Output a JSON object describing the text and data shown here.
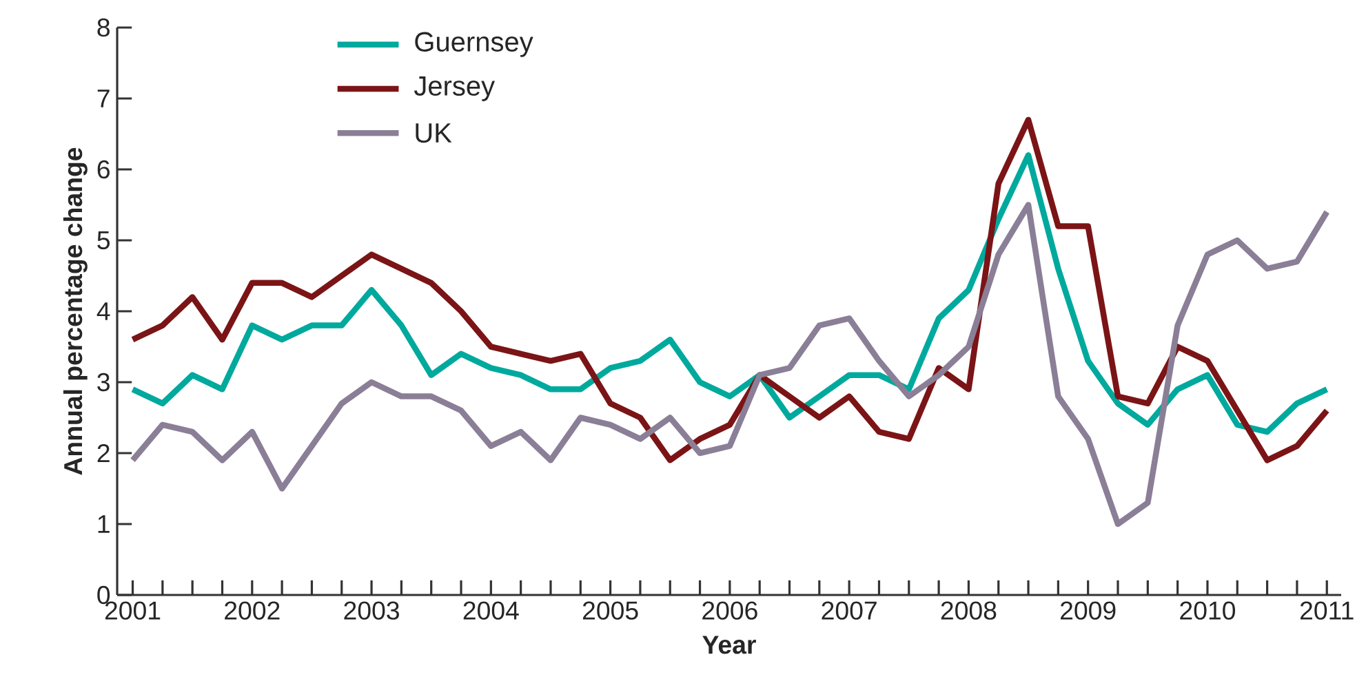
{
  "chart_data": {
    "type": "line",
    "xlabel": "Year",
    "ylabel": "Annual percentage change",
    "x": [
      2001,
      2001.25,
      2001.5,
      2001.75,
      2002,
      2002.25,
      2002.5,
      2002.75,
      2003,
      2003.25,
      2003.5,
      2003.75,
      2004,
      2004.25,
      2004.5,
      2004.75,
      2005,
      2005.25,
      2005.5,
      2005.75,
      2006,
      2006.25,
      2006.5,
      2006.75,
      2007,
      2007.25,
      2007.5,
      2007.75,
      2008,
      2008.25,
      2008.5,
      2008.75,
      2009,
      2009.25,
      2009.5,
      2009.75,
      2010,
      2010.25,
      2010.5,
      2010.75,
      2011
    ],
    "series": [
      {
        "name": "Guernsey",
        "color": "#00a99d",
        "values": [
          2.9,
          2.7,
          3.1,
          2.9,
          3.8,
          3.6,
          3.8,
          3.8,
          4.3,
          3.8,
          3.1,
          3.4,
          3.2,
          3.1,
          2.9,
          2.9,
          3.2,
          3.3,
          3.6,
          3.0,
          2.8,
          3.1,
          2.5,
          2.8,
          3.1,
          3.1,
          2.9,
          3.9,
          4.3,
          5.3,
          6.2,
          4.6,
          3.3,
          2.7,
          2.4,
          2.9,
          3.1,
          2.4,
          2.3,
          2.7,
          2.9
        ]
      },
      {
        "name": "Jersey",
        "color": "#7b1416",
        "values": [
          3.6,
          3.8,
          4.2,
          3.6,
          4.4,
          4.4,
          4.2,
          4.5,
          4.8,
          4.6,
          4.4,
          4.0,
          3.5,
          3.4,
          3.3,
          3.4,
          2.7,
          2.5,
          1.9,
          2.2,
          2.4,
          3.1,
          2.8,
          2.5,
          2.8,
          2.3,
          2.2,
          3.2,
          2.9,
          5.8,
          6.7,
          5.2,
          5.2,
          2.8,
          2.7,
          3.5,
          3.3,
          2.6,
          1.9,
          2.1,
          2.6
        ]
      },
      {
        "name": "UK",
        "color": "#8a7f96",
        "values": [
          1.9,
          2.4,
          2.3,
          1.9,
          2.3,
          1.5,
          2.1,
          2.7,
          3.0,
          2.8,
          2.8,
          2.6,
          2.1,
          2.3,
          1.9,
          2.5,
          2.4,
          2.2,
          2.5,
          2.0,
          2.1,
          3.1,
          3.2,
          3.8,
          3.9,
          3.3,
          2.8,
          3.1,
          3.5,
          4.8,
          5.5,
          2.8,
          2.2,
          1.0,
          1.3,
          3.8,
          4.8,
          5.0,
          4.6,
          4.7,
          5.4
        ]
      }
    ],
    "xlim": [
      2000.87,
      2011.12
    ],
    "ylim": [
      0,
      8
    ],
    "xticks": [
      2001,
      {
        "value": 2001.25,
        "label": null
      },
      {
        "value": 2001.5,
        "label": null
      },
      {
        "value": 2001.75,
        "label": null
      },
      2002,
      {
        "value": 2002.25,
        "label": null
      },
      {
        "value": 2002.5,
        "label": null
      },
      {
        "value": 2002.75,
        "label": null
      },
      2003,
      {
        "value": 2003.25,
        "label": null
      },
      {
        "value": 2003.5,
        "label": null
      },
      {
        "value": 2003.75,
        "label": null
      },
      2004,
      {
        "value": 2004.25,
        "label": null
      },
      {
        "value": 2004.5,
        "label": null
      },
      {
        "value": 2004.75,
        "label": null
      },
      2005,
      {
        "value": 2005.25,
        "label": null
      },
      {
        "value": 2005.5,
        "label": null
      },
      {
        "value": 2005.75,
        "label": null
      },
      2006,
      {
        "value": 2006.25,
        "label": null
      },
      {
        "value": 2006.5,
        "label": null
      },
      {
        "value": 2006.75,
        "label": null
      },
      2007,
      {
        "value": 2007.25,
        "label": null
      },
      {
        "value": 2007.5,
        "label": null
      },
      {
        "value": 2007.75,
        "label": null
      },
      2008,
      {
        "value": 2008.25,
        "label": null
      },
      {
        "value": 2008.5,
        "label": null
      },
      {
        "value": 2008.75,
        "label": null
      },
      2009,
      {
        "value": 2009.25,
        "label": null
      },
      {
        "value": 2009.5,
        "label": null
      },
      {
        "value": 2009.75,
        "label": null
      },
      2010,
      {
        "value": 2010.25,
        "label": null
      },
      {
        "value": 2010.5,
        "label": null
      },
      {
        "value": 2010.75,
        "label": null
      },
      2011
    ],
    "yticks": [
      0,
      1,
      2,
      3,
      4,
      5,
      6,
      7,
      8
    ],
    "legend": "top left",
    "marker": "none",
    "grid": false
  }
}
